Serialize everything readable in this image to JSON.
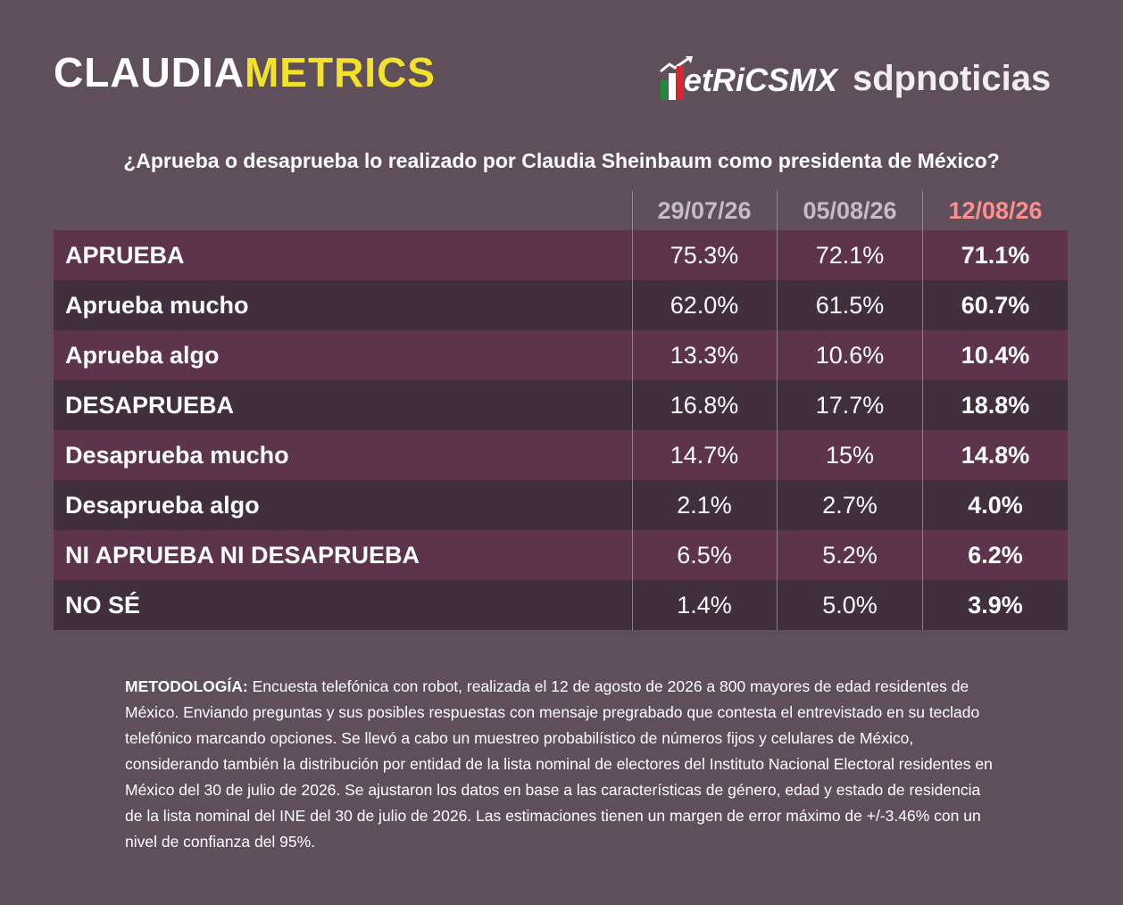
{
  "brand": {
    "part1": "CLAUDIA",
    "part2": "METRICS"
  },
  "logos": {
    "metricsmx": "etRiCSMX",
    "sdp": "sdpnoticias"
  },
  "colors": {
    "accent_yellow": "#f2e22c",
    "latest_header": "#ff8f8f",
    "row_odd": "#5e344c",
    "row_even": "#412f3e",
    "background": "#5e4f5b"
  },
  "chart_data": {
    "type": "table",
    "title": "¿Aprueba o desaprueba lo realizado por Claudia Sheinbaum como presidenta de México?",
    "columns": [
      "29/07/26",
      "05/08/26",
      "12/08/26"
    ],
    "rows": [
      {
        "label": "APRUEBA",
        "values": [
          "75.3%",
          "72.1%",
          "71.1%"
        ]
      },
      {
        "label": "Aprueba mucho",
        "values": [
          "62.0%",
          "61.5%",
          "60.7%"
        ]
      },
      {
        "label": "Aprueba algo",
        "values": [
          "13.3%",
          "10.6%",
          "10.4%"
        ]
      },
      {
        "label": "DESAPRUEBA",
        "values": [
          "16.8%",
          "17.7%",
          "18.8%"
        ]
      },
      {
        "label": "Desaprueba mucho",
        "values": [
          "14.7%",
          "15%",
          "14.8%"
        ]
      },
      {
        "label": "Desaprueba algo",
        "values": [
          "2.1%",
          "2.7%",
          "4.0%"
        ]
      },
      {
        "label": "NI APRUEBA NI DESAPRUEBA",
        "values": [
          "6.5%",
          "5.2%",
          "6.2%"
        ]
      },
      {
        "label": "NO SÉ",
        "values": [
          "1.4%",
          "5.0%",
          "3.9%"
        ]
      }
    ]
  },
  "methodology": {
    "label": "METODOLOGÍA:",
    "text": " Encuesta telefónica con robot, realizada el 12 de agosto de 2026 a 800 mayores de edad residentes de México. Enviando preguntas y sus posibles respuestas con mensaje pregrabado que contesta el entrevistado en su teclado telefónico marcando opciones. Se llevó a cabo un muestreo probabilístico de números fijos y celulares de México, considerando también la distribución por entidad de la lista nominal de electores del Instituto Nacional Electoral residentes en México del 30 de julio de 2026. Se ajustaron los datos en base a las características de género, edad y estado de residencia de la lista nominal del INE del 30 de julio de 2026. Las estimaciones tienen un margen de error máximo de +/-3.46% con un nivel de confianza del 95%."
  }
}
